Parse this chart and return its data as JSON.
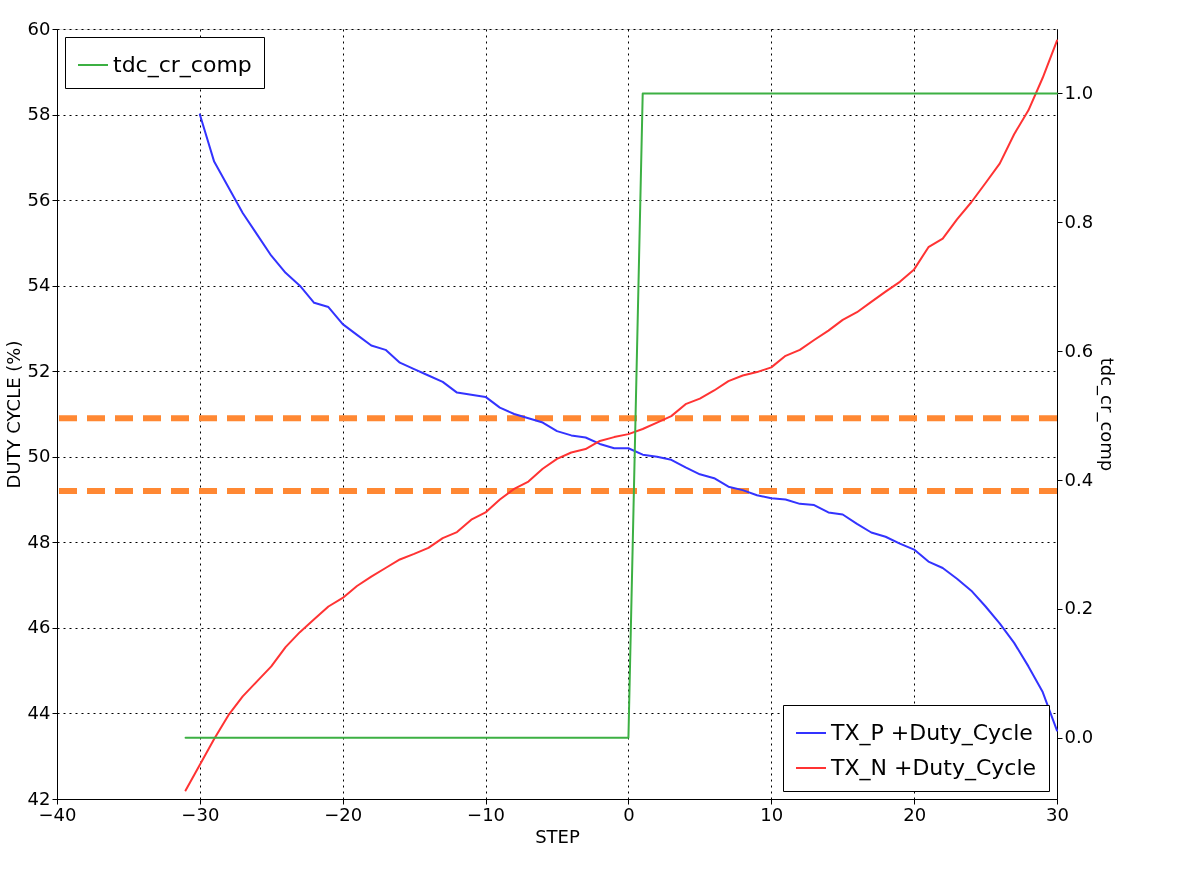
{
  "chart_data": {
    "type": "line",
    "xlabel": "STEP",
    "ylabel": "DUTY CYCLE (%)",
    "y2label": "tdc_cr_comp",
    "x": [
      -31,
      -30,
      -29,
      -28,
      -27,
      -26,
      -25,
      -24,
      -23,
      -22,
      -21,
      -20,
      -19,
      -18,
      -17,
      -16,
      -15,
      -14,
      -13,
      -12,
      -11,
      -10,
      -9,
      -8,
      -7,
      -6,
      -5,
      -4,
      -3,
      -2,
      -1,
      0,
      1,
      2,
      3,
      4,
      5,
      6,
      7,
      8,
      9,
      10,
      11,
      12,
      13,
      14,
      15,
      16,
      17,
      18,
      19,
      20,
      21,
      22,
      23,
      24,
      25,
      26,
      27,
      28,
      29,
      30
    ],
    "series": [
      {
        "name": "TX_P +Duty_Cycle",
        "color": "#3333ff",
        "values": [
          null,
          58.0,
          56.9,
          56.3,
          55.7,
          55.2,
          54.7,
          54.3,
          54.0,
          53.6,
          53.5,
          53.1,
          52.85,
          52.6,
          52.5,
          52.2,
          52.05,
          51.9,
          51.75,
          51.5,
          51.45,
          51.4,
          51.15,
          51.0,
          50.9,
          50.8,
          50.6,
          50.5,
          50.45,
          50.3,
          50.2,
          50.2,
          50.05,
          50.0,
          49.93,
          49.75,
          49.59,
          49.5,
          49.3,
          49.22,
          49.1,
          49.03,
          49.0,
          48.9,
          48.87,
          48.7,
          48.65,
          48.43,
          48.23,
          48.13,
          47.97,
          47.83,
          47.55,
          47.4,
          47.15,
          46.87,
          46.5,
          46.1,
          45.65,
          45.1,
          44.5,
          43.6
        ]
      },
      {
        "name": "TX_N +Duty_Cycle",
        "color": "#ff3333",
        "values": [
          42.2,
          42.8,
          43.4,
          43.96,
          44.4,
          44.75,
          45.1,
          45.55,
          45.9,
          46.2,
          46.5,
          46.7,
          46.98,
          47.2,
          47.4,
          47.6,
          47.73,
          47.87,
          48.1,
          48.24,
          48.53,
          48.7,
          49.0,
          49.25,
          49.42,
          49.72,
          49.95,
          50.1,
          50.18,
          50.37,
          50.46,
          50.53,
          50.65,
          50.8,
          50.95,
          51.23,
          51.36,
          51.55,
          51.77,
          51.9,
          51.98,
          52.09,
          52.36,
          52.5,
          52.73,
          52.95,
          53.2,
          53.38,
          53.62,
          53.86,
          54.09,
          54.38,
          54.9,
          55.1,
          55.55,
          55.95,
          56.4,
          56.86,
          57.54,
          58.1,
          58.86,
          59.73
        ]
      },
      {
        "name": "tdc_cr_comp",
        "color": "#3cb043",
        "axis": "y2",
        "x": [
          -31,
          0,
          1,
          30
        ],
        "values": [
          0,
          0,
          1,
          1
        ]
      }
    ],
    "xlim": [
      -40,
      30
    ],
    "xticks": [
      -40,
      -30,
      -20,
      -10,
      0,
      10,
      20,
      30
    ],
    "ylim": [
      42,
      60
    ],
    "yticks": [
      42,
      44,
      46,
      48,
      50,
      52,
      54,
      56,
      58,
      60
    ],
    "y2lim": [
      -0.095,
      1.1
    ],
    "y2ticks": [
      {
        "value": 0,
        "label": "0.0"
      },
      0.2,
      0.4,
      0.6,
      0.8,
      {
        "value": 1,
        "label": "1.0"
      }
    ],
    "ref_lines": [
      {
        "axis": "y",
        "value": 50.9,
        "color": "#ff8833",
        "line_style": "dashed"
      },
      {
        "axis": "y",
        "value": 49.2,
        "color": "#ff8833",
        "line_style": "dashed"
      }
    ],
    "grid": true,
    "legend": "bottom right",
    "line_style": "solid"
  }
}
